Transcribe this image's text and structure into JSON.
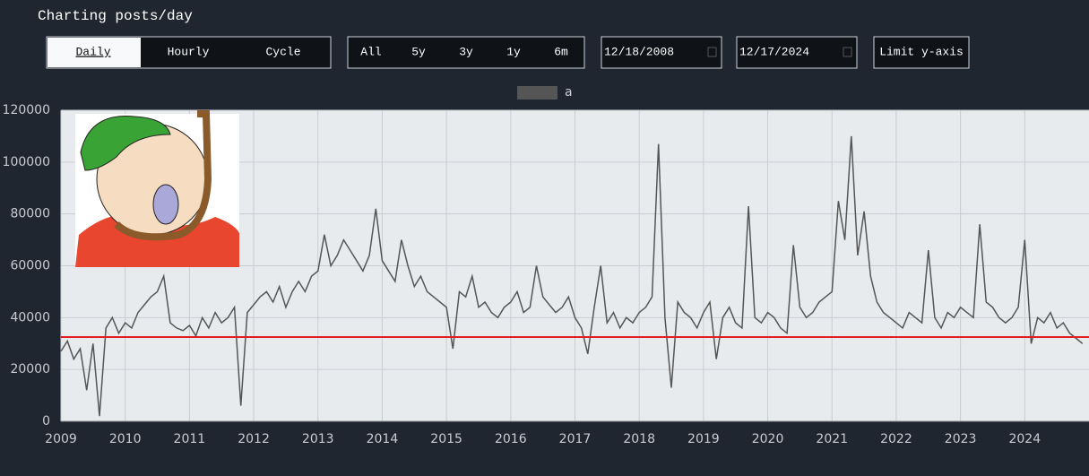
{
  "header": {
    "title": "Charting posts/day"
  },
  "controls": {
    "modes": [
      "Daily",
      "Hourly",
      "Cycle"
    ],
    "active_mode": 0,
    "periods": [
      "All",
      "5y",
      "3y",
      "1y",
      "6m"
    ],
    "start_date": "12/18/2008",
    "end_date": "12/17/2024",
    "limit_button": "Limit y-axis"
  },
  "chart_data": {
    "type": "line",
    "x": [
      2009,
      2009.1,
      2009.2,
      2009.3,
      2009.4,
      2009.5,
      2009.6,
      2009.7,
      2009.8,
      2009.9,
      2010,
      2010.1,
      2010.2,
      2010.3,
      2010.4,
      2010.5,
      2010.6,
      2010.7,
      2010.8,
      2010.9,
      2011,
      2011.1,
      2011.2,
      2011.3,
      2011.4,
      2011.5,
      2011.6,
      2011.7,
      2011.8,
      2011.9,
      2012,
      2012.1,
      2012.2,
      2012.3,
      2012.4,
      2012.5,
      2012.6,
      2012.7,
      2012.8,
      2012.9,
      2013,
      2013.1,
      2013.2,
      2013.3,
      2013.4,
      2013.5,
      2013.6,
      2013.7,
      2013.8,
      2013.9,
      2014,
      2014.1,
      2014.2,
      2014.3,
      2014.4,
      2014.5,
      2014.6,
      2014.7,
      2014.8,
      2014.9,
      2015,
      2015.1,
      2015.2,
      2015.3,
      2015.4,
      2015.5,
      2015.6,
      2015.7,
      2015.8,
      2015.9,
      2016,
      2016.1,
      2016.2,
      2016.3,
      2016.4,
      2016.5,
      2016.6,
      2016.7,
      2016.8,
      2016.9,
      2017,
      2017.1,
      2017.2,
      2017.3,
      2017.4,
      2017.5,
      2017.6,
      2017.7,
      2017.8,
      2017.9,
      2018,
      2018.1,
      2018.2,
      2018.3,
      2018.4,
      2018.5,
      2018.6,
      2018.7,
      2018.8,
      2018.9,
      2019,
      2019.1,
      2019.2,
      2019.3,
      2019.4,
      2019.5,
      2019.6,
      2019.7,
      2019.8,
      2019.9,
      2020,
      2020.1,
      2020.2,
      2020.3,
      2020.4,
      2020.5,
      2020.6,
      2020.7,
      2020.8,
      2020.9,
      2021,
      2021.1,
      2021.2,
      2021.3,
      2021.4,
      2021.5,
      2021.6,
      2021.7,
      2021.8,
      2021.9,
      2022,
      2022.1,
      2022.2,
      2022.3,
      2022.4,
      2022.5,
      2022.6,
      2022.7,
      2022.8,
      2022.9,
      2023,
      2023.1,
      2023.2,
      2023.3,
      2023.4,
      2023.5,
      2023.6,
      2023.7,
      2023.8,
      2023.9,
      2024,
      2024.1,
      2024.2,
      2024.3,
      2024.4,
      2024.5,
      2024.6,
      2024.7,
      2024.8,
      2024.9
    ],
    "series": [
      {
        "name": "a",
        "color": "#555555",
        "values": [
          27000,
          31000,
          24000,
          28000,
          12000,
          30000,
          2000,
          36000,
          40000,
          34000,
          38000,
          36000,
          42000,
          45000,
          48000,
          50000,
          56000,
          38000,
          36000,
          35000,
          37000,
          33000,
          40000,
          36000,
          42000,
          38000,
          40000,
          44000,
          6000,
          42000,
          45000,
          48000,
          50000,
          46000,
          52000,
          44000,
          50000,
          54000,
          50000,
          56000,
          58000,
          72000,
          60000,
          64000,
          70000,
          66000,
          62000,
          58000,
          64000,
          82000,
          62000,
          58000,
          54000,
          70000,
          60000,
          52000,
          56000,
          50000,
          48000,
          46000,
          44000,
          28000,
          50000,
          48000,
          56000,
          44000,
          46000,
          42000,
          40000,
          44000,
          46000,
          50000,
          42000,
          44000,
          60000,
          48000,
          45000,
          42000,
          44000,
          48000,
          40000,
          36000,
          26000,
          44000,
          60000,
          38000,
          42000,
          36000,
          40000,
          38000,
          42000,
          44000,
          48000,
          107000,
          40000,
          13000,
          46000,
          42000,
          40000,
          36000,
          42000,
          46000,
          24000,
          40000,
          44000,
          38000,
          36000,
          83000,
          40000,
          38000,
          42000,
          40000,
          36000,
          34000,
          68000,
          44000,
          40000,
          42000,
          46000,
          48000,
          50000,
          85000,
          70000,
          110000,
          64000,
          81000,
          56000,
          46000,
          42000,
          40000,
          38000,
          36000,
          42000,
          40000,
          38000,
          66000,
          40000,
          36000,
          42000,
          40000,
          44000,
          42000,
          40000,
          76000,
          46000,
          44000,
          40000,
          38000,
          40000,
          44000,
          70000,
          30000,
          40000,
          38000,
          42000,
          36000,
          38000,
          34000,
          32000,
          30000
        ]
      }
    ],
    "reference_line": {
      "value": 32500,
      "color": "#e02020"
    },
    "xlim": [
      2009,
      2025
    ],
    "xticks": [
      2009,
      2010,
      2011,
      2012,
      2013,
      2014,
      2015,
      2016,
      2017,
      2018,
      2019,
      2020,
      2021,
      2022,
      2023,
      2024
    ],
    "ylim": [
      0,
      120000
    ],
    "yticks": [
      0,
      20000,
      40000,
      60000,
      80000,
      100000,
      120000
    ],
    "grid": true
  }
}
